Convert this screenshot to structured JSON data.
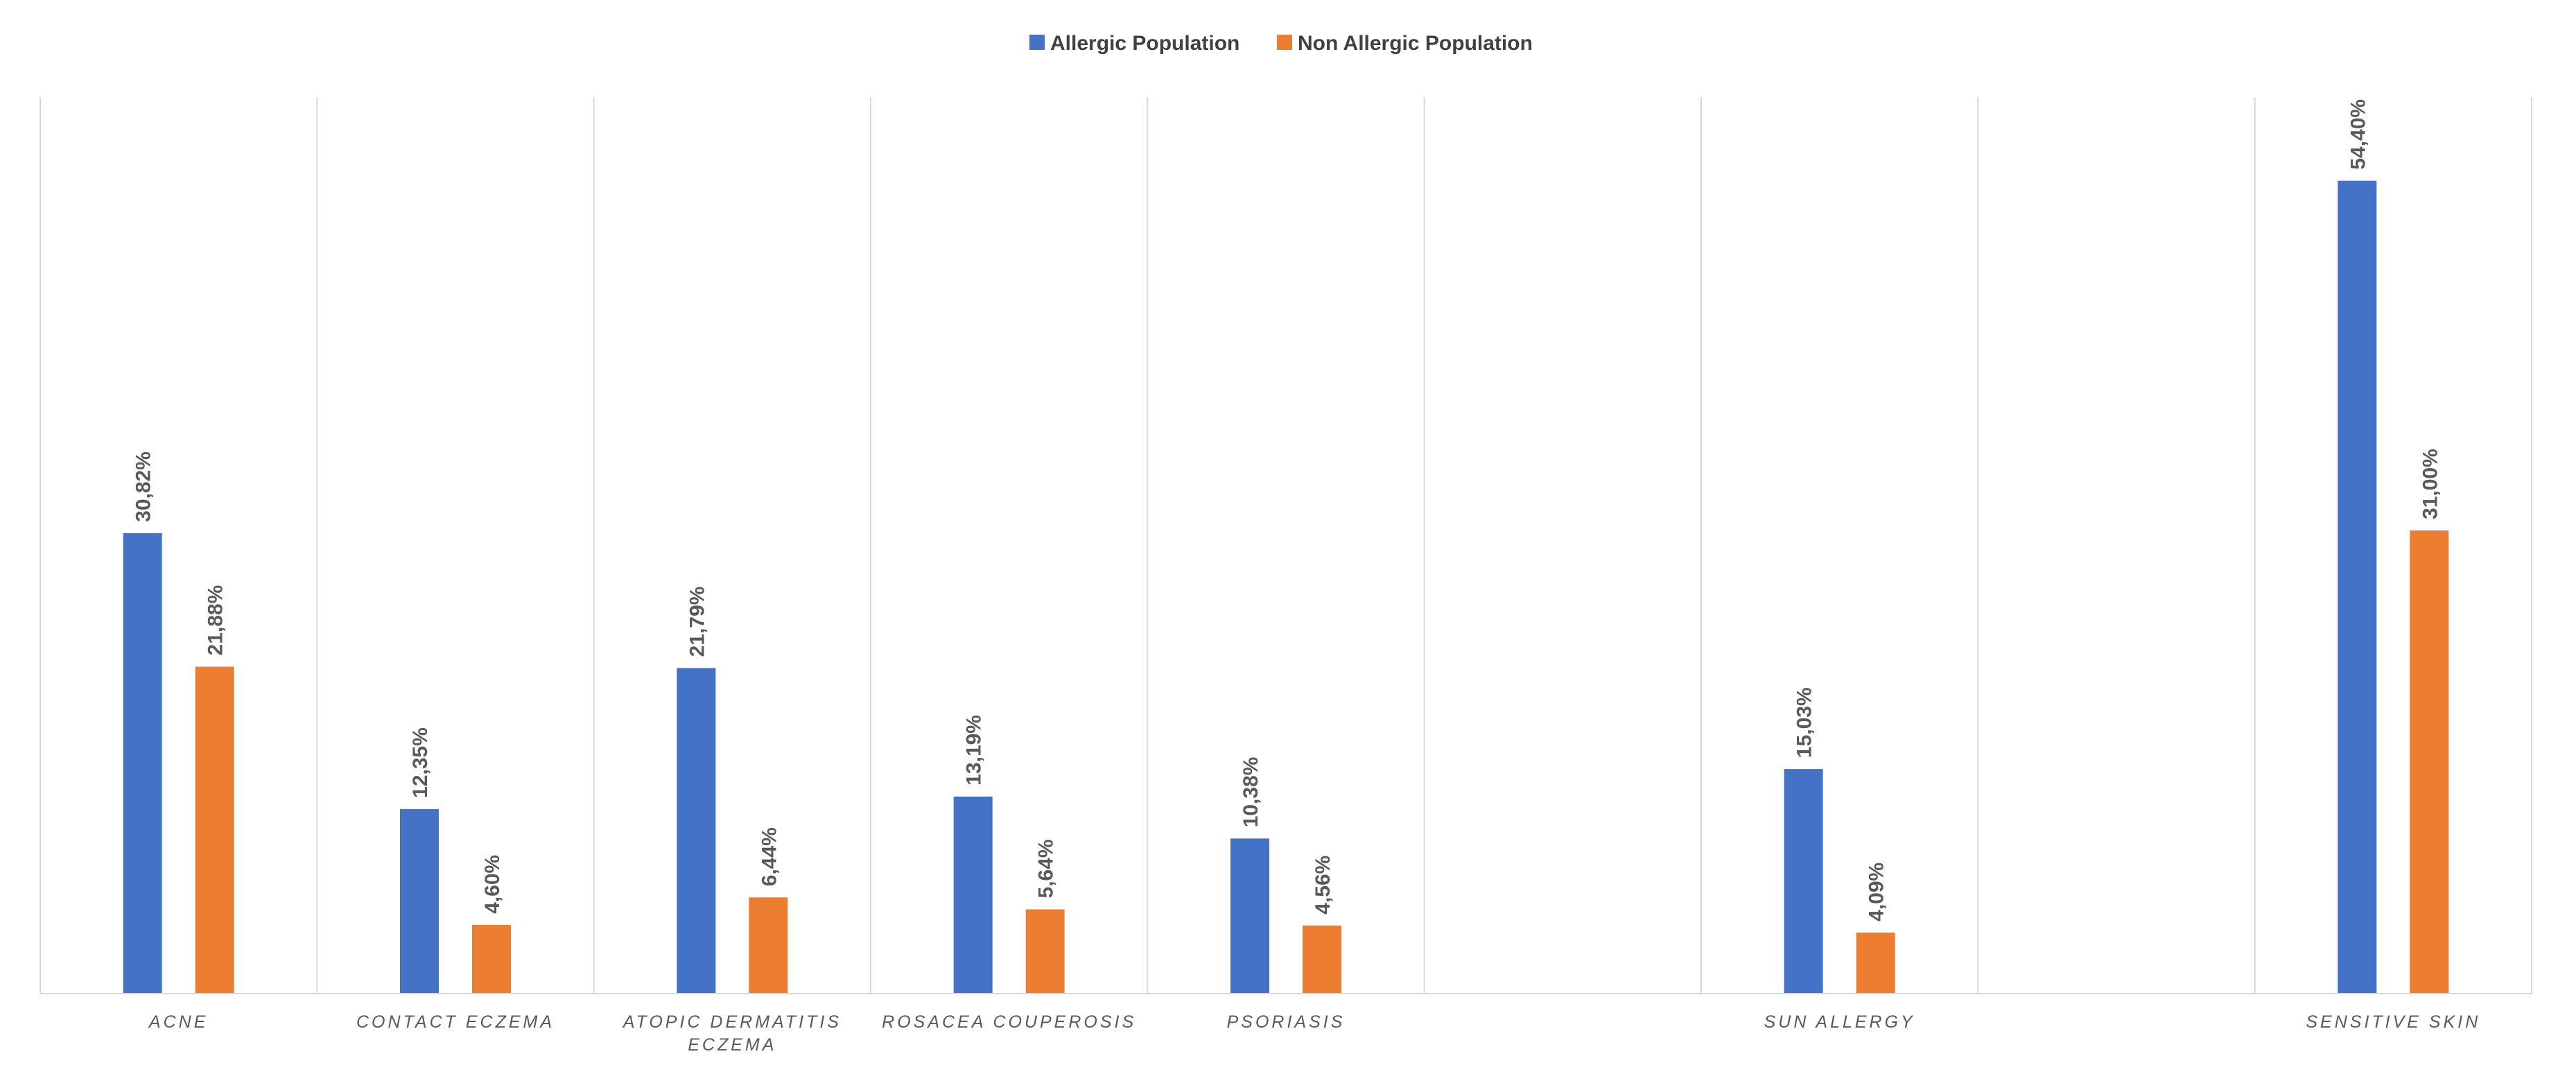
{
  "chart_data": {
    "type": "bar",
    "title": "",
    "xlabel": "",
    "ylabel": "",
    "ylim": [
      0,
      60
    ],
    "legend_position": "top-center",
    "grid": "vertical category separators",
    "categories": [
      [
        "ACNE"
      ],
      [
        "CONTACT ECZEMA"
      ],
      [
        "ATOPIC DERMATITIS",
        "ECZEMA"
      ],
      [
        "ROSACEA COUPEROSIS"
      ],
      [
        "PSORIASIS"
      ],
      [
        ""
      ],
      [
        "SUN ALLERGY"
      ],
      [
        ""
      ],
      [
        "SENSITIVE SKIN"
      ]
    ],
    "series": [
      {
        "name": "Allergic Population",
        "color": "#4472C4",
        "values": [
          30.82,
          12.35,
          21.79,
          13.19,
          10.38,
          null,
          15.03,
          null,
          54.4
        ],
        "labels": [
          "30,82%",
          "12,35%",
          "21,79%",
          "13,19%",
          "10,38%",
          null,
          "15,03%",
          null,
          "54,40%"
        ]
      },
      {
        "name": "Non Allergic Population",
        "color": "#ED7D31",
        "values": [
          21.88,
          4.6,
          6.44,
          5.64,
          4.56,
          null,
          4.09,
          null,
          31.0
        ],
        "labels": [
          "21,88%",
          "4,60%",
          "6,44%",
          "5,64%",
          "4,56%",
          null,
          "4,09%",
          null,
          "31,00%"
        ]
      }
    ]
  }
}
